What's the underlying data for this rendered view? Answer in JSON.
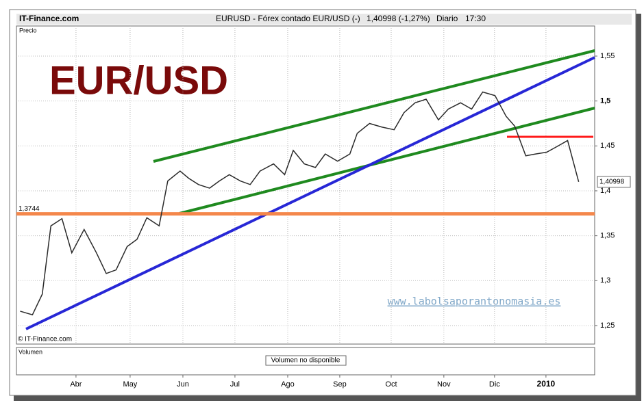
{
  "header": {
    "site": "IT-Finance.com",
    "instrument": "EURUSD - Fórex contado EUR/USD (-)",
    "quote": "1,40998 (-1,27%)",
    "period": "Diario",
    "time": "17:30"
  },
  "chart_data": {
    "type": "line",
    "title": "EUR/USD",
    "panel_label": "Precio",
    "copyright": "© IT-Finance.com",
    "watermark": "www.labolsaporantonomasia.es",
    "last_label": "1,40998",
    "x": [
      0.3,
      1.3,
      2.1,
      2.8,
      3.7,
      4.5,
      5.5,
      6.5,
      7.3,
      8.1,
      9.0,
      9.8,
      10.6,
      11.6,
      12.3,
      13.3,
      14.0,
      14.8,
      15.7,
      16.5,
      17.3,
      18.2,
      19.0,
      19.8,
      20.9,
      21.8,
      22.5,
      23.4,
      24.3,
      25.1,
      26.1,
      27.1,
      27.7,
      28.7,
      29.7,
      30.7,
      31.5,
      32.4,
      33.3,
      34.3,
      35.1,
      36.1,
      37.0,
      37.9,
      38.9,
      39.8,
      40.5,
      41.4,
      42.2,
      43.1,
      43.9,
      44.8,
      45.7
    ],
    "series": [
      {
        "name": "EURUSD",
        "color": "#2a2a2a",
        "values": [
          1.266,
          1.262,
          1.285,
          1.361,
          1.369,
          1.331,
          1.357,
          1.331,
          1.308,
          1.312,
          1.338,
          1.346,
          1.37,
          1.361,
          1.411,
          1.422,
          1.414,
          1.407,
          1.403,
          1.411,
          1.418,
          1.411,
          1.407,
          1.422,
          1.43,
          1.418,
          1.445,
          1.43,
          1.426,
          1.441,
          1.433,
          1.441,
          1.464,
          1.475,
          1.471,
          1.468,
          1.487,
          1.498,
          1.502,
          1.479,
          1.491,
          1.498,
          1.491,
          1.51,
          1.506,
          1.483,
          1.472,
          1.439,
          1.441,
          1.443,
          1.449,
          1.456,
          1.41
        ]
      }
    ],
    "xlim": [
      0,
      47
    ],
    "xticks": [
      {
        "value": 4.84,
        "label": "Abr"
      },
      {
        "value": 9.24,
        "label": "May"
      },
      {
        "value": 13.53,
        "label": "Jun"
      },
      {
        "value": 17.76,
        "label": "Jul"
      },
      {
        "value": 22.05,
        "label": "Ago"
      },
      {
        "value": 26.28,
        "label": "Sep"
      },
      {
        "value": 30.46,
        "label": "Oct"
      },
      {
        "value": 34.74,
        "label": "Nov"
      },
      {
        "value": 38.86,
        "label": "Dic"
      },
      {
        "value": 43.04,
        "label": "2010"
      }
    ],
    "ylim": [
      1.2294,
      1.5835
    ],
    "yticks": [
      {
        "value": 1.25,
        "label": "1,25"
      },
      {
        "value": 1.3,
        "label": "1,3"
      },
      {
        "value": 1.35,
        "label": "1,35"
      },
      {
        "value": 1.4,
        "label": "1,4"
      },
      {
        "value": 1.45,
        "label": "1,45"
      },
      {
        "value": 1.5,
        "label": "1,5"
      },
      {
        "value": 1.55,
        "label": "1,55"
      }
    ],
    "grid": true,
    "support": {
      "value": 1.3744,
      "label": "1,3744",
      "color": "#f4874b"
    },
    "volume": {
      "label": "Volumen",
      "note": "Volumen no disponible"
    }
  }
}
